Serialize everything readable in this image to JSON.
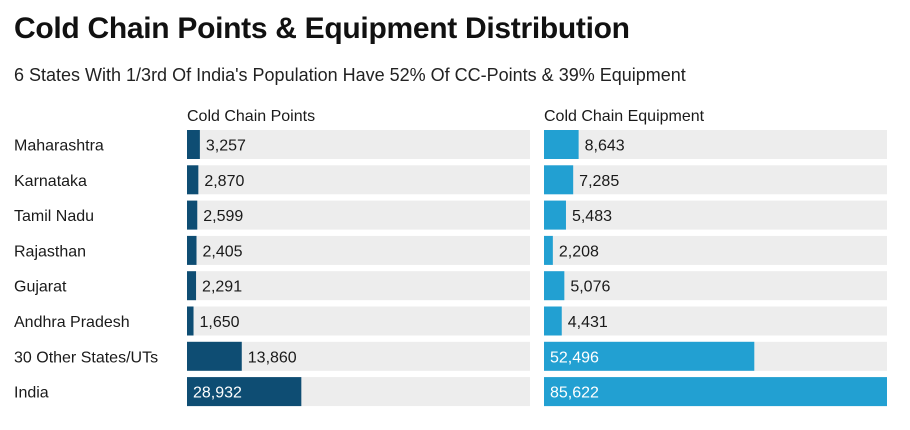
{
  "title": "Cold Chain Points & Equipment Distribution",
  "subtitle": "6 States With 1/3rd Of India's Population Have 52% Of CC-Points & 39% Equipment",
  "colors": {
    "points": "#0e4d73",
    "equipment": "#22a0d2",
    "track": "#ededed"
  },
  "chart_data": {
    "type": "bar",
    "categories": [
      "Maharashtra",
      "Karnataka",
      "Tamil Nadu",
      "Rajasthan",
      "Gujarat",
      "Andhra Pradesh",
      "30 Other States/UTs",
      "India"
    ],
    "series": [
      {
        "name": "Cold Chain Points",
        "values": [
          3257,
          2870,
          2599,
          2405,
          2291,
          1650,
          13860,
          28932
        ],
        "labels": [
          "3,257",
          "2,870",
          "2,599",
          "2,405",
          "2,291",
          "1,650",
          "13,860",
          "28,932"
        ]
      },
      {
        "name": "Cold Chain Equipment",
        "values": [
          8643,
          7285,
          5483,
          2208,
          5076,
          4431,
          52496,
          85622
        ],
        "labels": [
          "8,643",
          "7,285",
          "5,483",
          "2,208",
          "5,076",
          "4,431",
          "52,496",
          "85,622"
        ]
      }
    ],
    "xlim": [
      [
        0,
        86800
      ],
      [
        0,
        85622
      ]
    ]
  }
}
